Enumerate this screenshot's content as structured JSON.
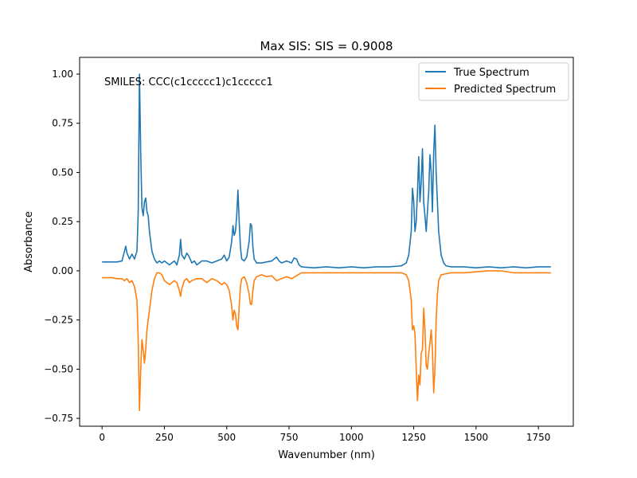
{
  "chart_data": {
    "type": "line",
    "title": "Max SIS: SIS = 0.9008",
    "xlabel": "Wavenumber (nm)",
    "ylabel": "Absorbance",
    "xlim": [
      -90,
      1890
    ],
    "ylim": [
      -0.79,
      1.085
    ],
    "xticks": [
      0,
      250,
      500,
      750,
      1000,
      1250,
      1500,
      1750
    ],
    "xtick_labels": [
      "0",
      "250",
      "500",
      "750",
      "1000",
      "1250",
      "1500",
      "1750"
    ],
    "yticks": [
      -0.75,
      -0.5,
      -0.25,
      0.0,
      0.25,
      0.5,
      0.75,
      1.0
    ],
    "ytick_labels": [
      "−0.75",
      "−0.50",
      "−0.25",
      "0.00",
      "0.25",
      "0.50",
      "0.75",
      "1.00"
    ],
    "grid": false,
    "legend_position": "top-right",
    "annotation": "SMILES: CCC(c1ccccc1)c1ccccc1",
    "series": [
      {
        "name": "True Spectrum",
        "color": "#1f77b4",
        "x": [
          0,
          60,
          80,
          90,
          95,
          100,
          110,
          120,
          130,
          140,
          145,
          150,
          155,
          160,
          165,
          170,
          175,
          180,
          185,
          190,
          200,
          210,
          220,
          230,
          240,
          250,
          260,
          270,
          280,
          290,
          300,
          310,
          315,
          320,
          330,
          340,
          350,
          360,
          370,
          380,
          400,
          420,
          440,
          460,
          480,
          490,
          500,
          510,
          520,
          525,
          530,
          535,
          540,
          545,
          550,
          555,
          560,
          570,
          580,
          590,
          595,
          600,
          605,
          610,
          620,
          640,
          660,
          680,
          700,
          710,
          720,
          740,
          760,
          770,
          780,
          790,
          800,
          850,
          900,
          950,
          1000,
          1050,
          1100,
          1150,
          1200,
          1220,
          1230,
          1240,
          1245,
          1250,
          1255,
          1260,
          1265,
          1270,
          1275,
          1280,
          1285,
          1290,
          1295,
          1300,
          1305,
          1310,
          1315,
          1320,
          1325,
          1330,
          1335,
          1340,
          1345,
          1350,
          1360,
          1370,
          1380,
          1400,
          1450,
          1500,
          1550,
          1600,
          1650,
          1700,
          1750,
          1800
        ],
        "y": [
          0.045,
          0.045,
          0.05,
          0.1,
          0.125,
          0.09,
          0.06,
          0.085,
          0.06,
          0.1,
          0.3,
          1.0,
          0.6,
          0.32,
          0.28,
          0.35,
          0.37,
          0.3,
          0.28,
          0.2,
          0.1,
          0.06,
          0.04,
          0.05,
          0.04,
          0.05,
          0.04,
          0.03,
          0.04,
          0.05,
          0.03,
          0.08,
          0.16,
          0.08,
          0.06,
          0.09,
          0.07,
          0.04,
          0.05,
          0.03,
          0.05,
          0.05,
          0.04,
          0.05,
          0.06,
          0.08,
          0.05,
          0.07,
          0.15,
          0.23,
          0.18,
          0.2,
          0.28,
          0.41,
          0.25,
          0.12,
          0.06,
          0.05,
          0.07,
          0.15,
          0.24,
          0.23,
          0.12,
          0.06,
          0.04,
          0.04,
          0.045,
          0.05,
          0.07,
          0.05,
          0.04,
          0.05,
          0.04,
          0.065,
          0.06,
          0.03,
          0.02,
          0.015,
          0.02,
          0.015,
          0.02,
          0.015,
          0.02,
          0.02,
          0.025,
          0.04,
          0.08,
          0.2,
          0.42,
          0.35,
          0.2,
          0.25,
          0.4,
          0.58,
          0.35,
          0.45,
          0.62,
          0.35,
          0.28,
          0.2,
          0.3,
          0.4,
          0.59,
          0.5,
          0.3,
          0.6,
          0.74,
          0.5,
          0.35,
          0.2,
          0.08,
          0.04,
          0.025,
          0.02,
          0.02,
          0.015,
          0.02,
          0.015,
          0.02,
          0.015,
          0.02,
          0.02
        ]
      },
      {
        "name": "Predicted Spectrum",
        "color": "#ff7f0e",
        "x": [
          0,
          40,
          60,
          80,
          90,
          100,
          110,
          120,
          130,
          140,
          145,
          150,
          155,
          160,
          165,
          170,
          175,
          180,
          190,
          200,
          210,
          220,
          230,
          240,
          250,
          260,
          270,
          280,
          290,
          300,
          310,
          315,
          320,
          330,
          340,
          350,
          360,
          380,
          400,
          420,
          440,
          460,
          480,
          490,
          500,
          510,
          520,
          525,
          530,
          535,
          540,
          545,
          550,
          555,
          560,
          570,
          580,
          590,
          595,
          600,
          605,
          610,
          620,
          640,
          660,
          680,
          700,
          720,
          740,
          760,
          780,
          800,
          850,
          900,
          950,
          1000,
          1050,
          1100,
          1150,
          1200,
          1220,
          1230,
          1240,
          1245,
          1250,
          1255,
          1260,
          1265,
          1270,
          1275,
          1280,
          1285,
          1290,
          1295,
          1300,
          1305,
          1310,
          1315,
          1320,
          1325,
          1330,
          1335,
          1340,
          1345,
          1350,
          1360,
          1380,
          1400,
          1450,
          1500,
          1550,
          1600,
          1650,
          1700,
          1750,
          1800
        ],
        "y": [
          -0.035,
          -0.035,
          -0.04,
          -0.04,
          -0.05,
          -0.04,
          -0.06,
          -0.05,
          -0.08,
          -0.15,
          -0.35,
          -0.71,
          -0.5,
          -0.35,
          -0.4,
          -0.47,
          -0.4,
          -0.3,
          -0.2,
          -0.1,
          -0.04,
          -0.01,
          -0.01,
          -0.02,
          -0.05,
          -0.06,
          -0.07,
          -0.06,
          -0.05,
          -0.06,
          -0.1,
          -0.13,
          -0.09,
          -0.05,
          -0.04,
          -0.06,
          -0.05,
          -0.04,
          -0.04,
          -0.06,
          -0.04,
          -0.05,
          -0.07,
          -0.06,
          -0.07,
          -0.1,
          -0.18,
          -0.25,
          -0.2,
          -0.22,
          -0.28,
          -0.3,
          -0.18,
          -0.08,
          -0.04,
          -0.03,
          -0.06,
          -0.12,
          -0.17,
          -0.17,
          -0.1,
          -0.05,
          -0.03,
          -0.02,
          -0.03,
          -0.025,
          -0.05,
          -0.04,
          -0.03,
          -0.04,
          -0.025,
          -0.01,
          -0.01,
          -0.01,
          -0.01,
          -0.01,
          -0.01,
          -0.01,
          -0.01,
          -0.01,
          -0.02,
          -0.05,
          -0.15,
          -0.3,
          -0.28,
          -0.32,
          -0.5,
          -0.66,
          -0.53,
          -0.58,
          -0.42,
          -0.4,
          -0.19,
          -0.3,
          -0.48,
          -0.5,
          -0.42,
          -0.37,
          -0.3,
          -0.4,
          -0.62,
          -0.5,
          -0.25,
          -0.12,
          -0.05,
          -0.02,
          -0.015,
          -0.01,
          -0.01,
          -0.005,
          -0.0,
          -0.0,
          -0.01,
          -0.01,
          -0.01,
          -0.01
        ]
      }
    ]
  }
}
